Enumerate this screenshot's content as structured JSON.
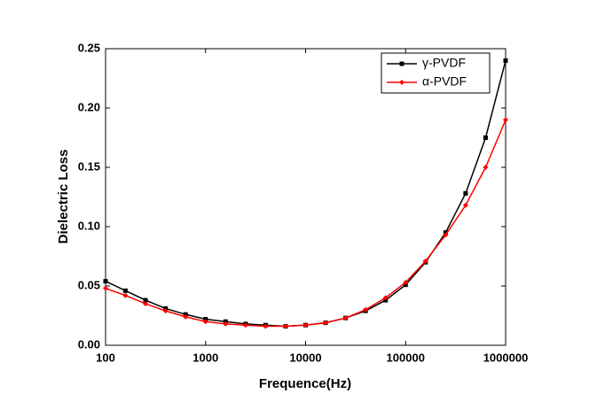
{
  "chart_data": {
    "type": "line",
    "xlabel": "Frequence(Hz)",
    "ylabel": "Dielectric Loss",
    "xscale": "log",
    "xlim": [
      100,
      1000000
    ],
    "xticks": [
      100,
      1000,
      10000,
      100000,
      1000000
    ],
    "ylim": [
      0,
      0.25
    ],
    "yticks": [
      {
        "value": 0,
        "label": "0.00"
      },
      {
        "value": 0.05,
        "label": "0.05"
      },
      {
        "value": 0.1,
        "label": "0.10"
      },
      {
        "value": 0.15,
        "label": "0.15"
      },
      {
        "value": 0.2,
        "label": "0.20"
      },
      {
        "value": 0.25,
        "label": "0.25"
      }
    ],
    "legend": "upper right",
    "x": [
      100,
      158,
      251,
      398,
      631,
      1000,
      1585,
      2512,
      3981,
      6310,
      10000,
      15849,
      25119,
      39811,
      63096,
      100000,
      158489,
      251189,
      398107,
      630957,
      1000000
    ],
    "series": [
      {
        "name": "γ-PVDF",
        "color": "#000000",
        "marker": "square",
        "values": [
          0.054,
          0.046,
          0.038,
          0.031,
          0.026,
          0.022,
          0.02,
          0.018,
          0.017,
          0.016,
          0.017,
          0.019,
          0.023,
          0.029,
          0.038,
          0.051,
          0.07,
          0.095,
          0.128,
          0.175,
          0.24
        ]
      },
      {
        "name": "α-PVDF",
        "color": "#ff0000",
        "marker": "diamond",
        "values": [
          0.048,
          0.042,
          0.035,
          0.029,
          0.024,
          0.02,
          0.018,
          0.017,
          0.016,
          0.016,
          0.017,
          0.019,
          0.023,
          0.03,
          0.04,
          0.053,
          0.071,
          0.093,
          0.118,
          0.15,
          0.19
        ]
      }
    ]
  }
}
